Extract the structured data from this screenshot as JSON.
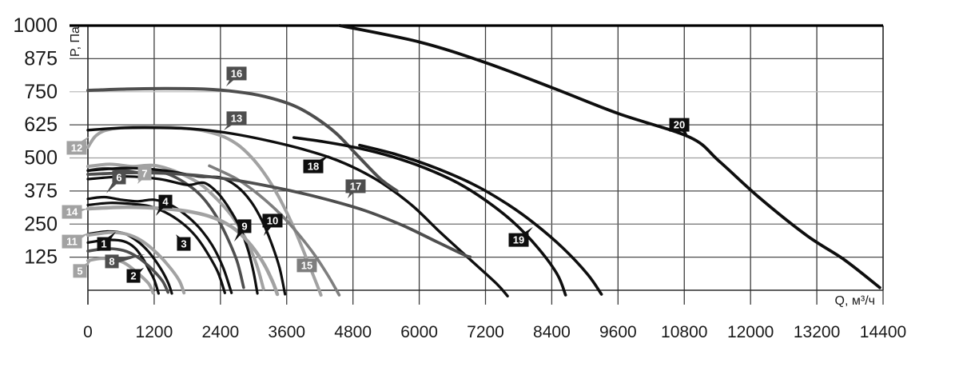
{
  "chart_data": {
    "type": "line",
    "title": "",
    "xlabel": "Q, м³/ч",
    "ylabel": "P, Па",
    "xlim": [
      0,
      14400
    ],
    "ylim": [
      0,
      1000
    ],
    "grid": true,
    "x_ticks": [
      0,
      1200,
      2400,
      3600,
      4800,
      6000,
      7200,
      8400,
      9600,
      10800,
      12000,
      13200,
      14400
    ],
    "y_ticks": [
      125,
      250,
      375,
      500,
      625,
      750,
      875,
      1000
    ],
    "grid_h_shades": {
      "875": "#4a4a4a",
      "750": "#bcbcbc",
      "625": "#4a4a4a",
      "500": "#9e9e9e",
      "375": "#4a4a4a",
      "250": "#6f6f6f",
      "125": "#4a4a4a"
    },
    "legend_note": "numbered callout boxes identify each fan curve",
    "series": [
      {
        "id": "1",
        "color": "#0e0e0e",
        "box_color": "#0e0e0e",
        "width": 3.2,
        "label": [
          290,
          175
        ],
        "tail": [
          506,
          221
        ],
        "points": [
          [
            0,
            212
          ],
          [
            350,
            222
          ],
          [
            650,
            215
          ],
          [
            900,
            185
          ],
          [
            1100,
            145
          ],
          [
            1300,
            88
          ],
          [
            1450,
            30
          ],
          [
            1520,
            -12
          ]
        ]
      },
      {
        "id": "2",
        "color": "#0e0e0e",
        "box_color": "#0e0e0e",
        "width": 3.2,
        "label": [
          825,
          54
        ],
        "tail": [
          1013,
          85
        ],
        "points": [
          [
            0,
            180
          ],
          [
            350,
            190
          ],
          [
            650,
            185
          ],
          [
            850,
            160
          ],
          [
            1000,
            118
          ],
          [
            1100,
            80
          ],
          [
            1200,
            40
          ],
          [
            1280,
            -12
          ]
        ]
      },
      {
        "id": "3",
        "color": "#0e0e0e",
        "box_color": "#0e0e0e",
        "width": 3.2,
        "label": [
          1736,
          175
        ],
        "tail": [
          1592,
          211
        ],
        "points": [
          [
            0,
            322
          ],
          [
            400,
            330
          ],
          [
            800,
            326
          ],
          [
            1100,
            318
          ],
          [
            1400,
            295
          ],
          [
            1700,
            255
          ],
          [
            1950,
            205
          ],
          [
            2150,
            145
          ],
          [
            2350,
            70
          ],
          [
            2480,
            -10
          ]
        ]
      },
      {
        "id": "4",
        "color": "#0e0e0e",
        "box_color": "#0e0e0e",
        "width": 3.2,
        "label": [
          1404,
          335
        ],
        "tail": [
          1230,
          281
        ],
        "points": [
          [
            0,
            345
          ],
          [
            300,
            352
          ],
          [
            600,
            342
          ],
          [
            900,
            336
          ],
          [
            1200,
            342
          ],
          [
            1500,
            322
          ],
          [
            1750,
            288
          ],
          [
            2000,
            240
          ],
          [
            2250,
            170
          ],
          [
            2450,
            85
          ],
          [
            2600,
            -10
          ]
        ]
      },
      {
        "id": "5",
        "color": "#a2a2a2",
        "box_color": "#a2a2a2",
        "width": 4,
        "label": [
          -145,
          73
        ],
        "tail": [
          72,
          115
        ],
        "points": [
          [
            0,
            112
          ],
          [
            250,
            120
          ],
          [
            500,
            116
          ],
          [
            700,
            98
          ],
          [
            900,
            65
          ],
          [
            1100,
            25
          ],
          [
            1180,
            -10
          ]
        ]
      },
      {
        "id": "6",
        "color": "#4e4e4e",
        "box_color": "#4e4e4e",
        "width": 3.6,
        "label": [
          564,
          426
        ],
        "tail": [
          333,
          366
        ],
        "points": [
          [
            0,
            452
          ],
          [
            300,
            460
          ],
          [
            700,
            452
          ],
          [
            1000,
            442
          ],
          [
            1300,
            448
          ],
          [
            1600,
            425
          ],
          [
            1900,
            385
          ],
          [
            2100,
            345
          ],
          [
            2300,
            288
          ],
          [
            2500,
            210
          ],
          [
            2700,
            110
          ],
          [
            2820,
            10
          ]
        ]
      },
      {
        "id": "7",
        "color": "#a2a2a2",
        "box_color": "#a2a2a2",
        "width": 4,
        "label": [
          1028,
          441
        ],
        "tail": [
          897,
          402
        ],
        "points": [
          [
            0,
            468
          ],
          [
            400,
            476
          ],
          [
            800,
            468
          ],
          [
            1200,
            472
          ],
          [
            1600,
            448
          ],
          [
            2000,
            406
          ],
          [
            2300,
            352
          ],
          [
            2600,
            282
          ],
          [
            2850,
            198
          ],
          [
            3050,
            100
          ],
          [
            3180,
            5
          ]
        ]
      },
      {
        "id": "8",
        "color": "#4e4e4e",
        "box_color": "#4e4e4e",
        "width": 3.6,
        "label": [
          434,
          109
        ],
        "tail": [
          1042,
          136
        ],
        "points": [
          [
            0,
            148
          ],
          [
            350,
            157
          ],
          [
            650,
            150
          ],
          [
            900,
            125
          ],
          [
            1150,
            82
          ],
          [
            1350,
            35
          ],
          [
            1450,
            -8
          ]
        ]
      },
      {
        "id": "9",
        "color": "#0e0e0e",
        "box_color": "#0e0e0e",
        "width": 3.2,
        "label": [
          2836,
          242
        ],
        "tail": [
          2648,
          184
        ],
        "points": [
          [
            0,
            420
          ],
          [
            700,
            430
          ],
          [
            1300,
            420
          ],
          [
            1800,
            398
          ],
          [
            2100,
            406
          ],
          [
            2350,
            368
          ],
          [
            2550,
            312
          ],
          [
            2750,
            238
          ],
          [
            2900,
            152
          ],
          [
            3000,
            68
          ],
          [
            3070,
            -12
          ]
        ]
      },
      {
        "id": "10",
        "color": "#0e0e0e",
        "box_color": "#0e0e0e",
        "width": 3.2,
        "label": [
          3343,
          263
        ],
        "tail": [
          3184,
          205
        ],
        "points": [
          [
            0,
            452
          ],
          [
            700,
            462
          ],
          [
            1400,
            452
          ],
          [
            2000,
            430
          ],
          [
            2400,
            426
          ],
          [
            2700,
            392
          ],
          [
            2950,
            336
          ],
          [
            3150,
            264
          ],
          [
            3320,
            180
          ],
          [
            3470,
            85
          ],
          [
            3570,
            -15
          ]
        ]
      },
      {
        "id": "11",
        "color": "#a2a2a2",
        "box_color": "#a2a2a2",
        "width": 4,
        "label": [
          -289,
          184
        ],
        "tail": [
          29,
          218
        ],
        "points": [
          [
            0,
            208
          ],
          [
            400,
            218
          ],
          [
            700,
            212
          ],
          [
            950,
            190
          ],
          [
            1200,
            150
          ],
          [
            1450,
            95
          ],
          [
            1650,
            38
          ],
          [
            1740,
            -10
          ]
        ]
      },
      {
        "id": "12",
        "color": "#a2a2a2",
        "box_color": "#a2a2a2",
        "width": 4,
        "label": [
          -203,
          538
        ],
        "tail": [
          29,
          583
        ],
        "points": [
          [
            0,
            540
          ],
          [
            150,
            585
          ],
          [
            400,
            608
          ],
          [
            900,
            617
          ],
          [
            1500,
            616
          ],
          [
            2000,
            606
          ],
          [
            2400,
            585
          ],
          [
            2700,
            552
          ],
          [
            2950,
            505
          ],
          [
            3200,
            440
          ],
          [
            3450,
            355
          ],
          [
            3700,
            250
          ],
          [
            3950,
            125
          ],
          [
            4150,
            20
          ],
          [
            4220,
            -18
          ]
        ]
      },
      {
        "id": "13",
        "color": "#0e0e0e",
        "box_color": "#4e4e4e",
        "width": 3.4,
        "label": [
          2692,
          650
        ],
        "tail": [
          2460,
          604
        ],
        "points": [
          [
            0,
            605
          ],
          [
            600,
            613
          ],
          [
            1300,
            614
          ],
          [
            2000,
            608
          ],
          [
            2600,
            592
          ],
          [
            3200,
            568
          ],
          [
            3800,
            538
          ],
          [
            4400,
            500
          ],
          [
            4900,
            455
          ],
          [
            5400,
            395
          ],
          [
            5900,
            315
          ],
          [
            6400,
            215
          ],
          [
            6900,
            120
          ],
          [
            7400,
            25
          ],
          [
            7600,
            -22
          ]
        ]
      },
      {
        "id": "14",
        "color": "#a2a2a2",
        "box_color": "#a2a2a2",
        "width": 4.5,
        "label": [
          -289,
          296
        ],
        "tail": [
          0,
          308
        ],
        "points": [
          [
            0,
            308
          ],
          [
            700,
            314
          ],
          [
            1400,
            308
          ],
          [
            1900,
            295
          ],
          [
            2300,
            272
          ],
          [
            2600,
            240
          ],
          [
            2800,
            205
          ],
          [
            3000,
            158
          ],
          [
            3200,
            95
          ],
          [
            3350,
            30
          ],
          [
            3430,
            -15
          ]
        ]
      },
      {
        "id": "15",
        "color": "#7e7e7e",
        "box_color": "#7e7e7e",
        "width": 3.6,
        "label": [
          3965,
          94
        ],
        "tail": [
          3907,
          124
        ],
        "points": [
          [
            2200,
            470
          ],
          [
            2700,
            420
          ],
          [
            3100,
            360
          ],
          [
            3500,
            285
          ],
          [
            3800,
            215
          ],
          [
            4100,
            135
          ],
          [
            4350,
            55
          ],
          [
            4550,
            -18
          ]
        ]
      },
      {
        "id": "16",
        "color": "#4e4e4e",
        "box_color": "#4e4e4e",
        "width": 4,
        "label": [
          2692,
          819
        ],
        "tail": [
          2503,
          770
        ],
        "points": [
          [
            0,
            755
          ],
          [
            700,
            760
          ],
          [
            1400,
            762
          ],
          [
            2100,
            760
          ],
          [
            2700,
            750
          ],
          [
            3200,
            732
          ],
          [
            3700,
            700
          ],
          [
            4100,
            655
          ],
          [
            4500,
            592
          ],
          [
            4900,
            505
          ],
          [
            5300,
            420
          ],
          [
            5600,
            375
          ]
        ]
      },
      {
        "id": "17",
        "color": "#4e4e4e",
        "box_color": "#4e4e4e",
        "width": 3.8,
        "label": [
          4848,
          393
        ],
        "tail": [
          4703,
          347
        ],
        "points": [
          [
            0,
            438
          ],
          [
            900,
            444
          ],
          [
            1800,
            437
          ],
          [
            2600,
            418
          ],
          [
            3400,
            388
          ],
          [
            4200,
            350
          ],
          [
            5000,
            302
          ],
          [
            5700,
            245
          ],
          [
            6300,
            185
          ],
          [
            6800,
            135
          ],
          [
            6920,
            126
          ]
        ]
      },
      {
        "id": "18",
        "color": "#0e0e0e",
        "box_color": "#0e0e0e",
        "width": 3.6,
        "label": [
          4081,
          468
        ],
        "tail": [
          4370,
          511
        ],
        "points": [
          [
            3730,
            577
          ],
          [
            4300,
            560
          ],
          [
            4900,
            537
          ],
          [
            5500,
            505
          ],
          [
            6100,
            462
          ],
          [
            6700,
            405
          ],
          [
            7200,
            340
          ],
          [
            7700,
            258
          ],
          [
            8150,
            160
          ],
          [
            8500,
            60
          ],
          [
            8650,
            -18
          ]
        ]
      },
      {
        "id": "19",
        "color": "#0e0e0e",
        "box_color": "#0e0e0e",
        "width": 3.6,
        "label": [
          7801,
          190
        ],
        "tail": [
          8060,
          239
        ],
        "points": [
          [
            4920,
            548
          ],
          [
            5600,
            512
          ],
          [
            6300,
            462
          ],
          [
            7000,
            398
          ],
          [
            7600,
            325
          ],
          [
            8100,
            250
          ],
          [
            8600,
            160
          ],
          [
            9050,
            60
          ],
          [
            9300,
            -15
          ]
        ]
      },
      {
        "id": "20",
        "color": "#0e0e0e",
        "box_color": "#0e0e0e",
        "width": 3.8,
        "label": [
          10710,
          625
        ],
        "tail": [
          10882,
          577
        ],
        "points": [
          [
            4560,
            1000
          ],
          [
            6000,
            938
          ],
          [
            7200,
            860
          ],
          [
            8400,
            766
          ],
          [
            9600,
            668
          ],
          [
            10900,
            578
          ],
          [
            11430,
            488
          ],
          [
            12160,
            350
          ],
          [
            13030,
            205
          ],
          [
            13700,
            115
          ],
          [
            14340,
            10
          ]
        ]
      }
    ]
  },
  "colors": {
    "background": "#ffffff",
    "axis": "#2a2a2a",
    "grid_vertical": "#3d3d3d",
    "top_border": "#000000",
    "tick_text": "#1a1a1a",
    "label_text": "#ffffff"
  }
}
